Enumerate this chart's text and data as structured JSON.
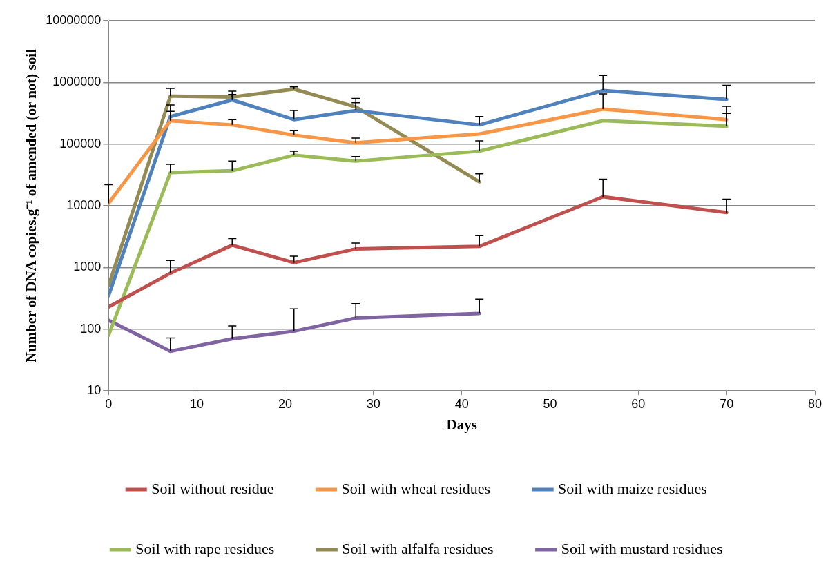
{
  "chart_data": {
    "type": "line",
    "xlabel": "Days",
    "ylabel": "Number of DNA copies.g⁻¹ of amended (or not) soil",
    "x": [
      0,
      7,
      14,
      21,
      28,
      42,
      56,
      70
    ],
    "xlim": [
      0,
      80
    ],
    "xticks": [
      0,
      10,
      20,
      30,
      40,
      50,
      60,
      70,
      80
    ],
    "ylim": [
      10,
      10000000
    ],
    "yticks": [
      10,
      100,
      1000,
      10000,
      100000,
      1000000,
      10000000
    ],
    "log": true,
    "grid": "y",
    "legend": "bottom",
    "marker": "none",
    "line_style": "solid",
    "series": [
      {
        "name": "Soil without residue",
        "color": "#c0504d",
        "values": [
          230,
          810,
          2300,
          1200,
          2000,
          2200,
          14000,
          7800
        ],
        "errors": [
          null,
          [
            810,
            1300
          ],
          [
            2300,
            2950
          ],
          [
            1200,
            1530
          ],
          [
            2000,
            2500
          ],
          [
            2200,
            3300
          ],
          [
            14000,
            27000
          ],
          [
            7800,
            12800
          ]
        ]
      },
      {
        "name": "Soil with wheat residues",
        "color": "#f79646",
        "values": [
          11000,
          240000,
          205000,
          140000,
          105000,
          146000,
          370000,
          250000
        ],
        "errors": [
          [
            11000,
            22000
          ],
          [
            240000,
            340000
          ],
          [
            205000,
            250000
          ],
          [
            140000,
            165000
          ],
          [
            105000,
            125000
          ],
          null,
          [
            370000,
            650000
          ],
          [
            250000,
            410000
          ]
        ]
      },
      {
        "name": "Soil with maize residues",
        "color": "#4f81bd",
        "values": [
          350,
          280000,
          520000,
          250000,
          350000,
          205000,
          740000,
          530000
        ],
        "errors": [
          null,
          [
            280000,
            430000
          ],
          [
            520000,
            640000
          ],
          [
            250000,
            350000
          ],
          [
            350000,
            470000
          ],
          [
            205000,
            280000
          ],
          [
            740000,
            1300000
          ],
          [
            530000,
            900000
          ]
        ]
      },
      {
        "name": "Soil with rape residues",
        "color": "#9bbb59",
        "values": [
          80,
          34500,
          37000,
          66000,
          53000,
          77000,
          240000,
          195000
        ],
        "errors": [
          null,
          [
            34500,
            47000
          ],
          [
            37000,
            53000
          ],
          [
            66000,
            77000
          ],
          [
            53000,
            63000
          ],
          [
            77000,
            113000
          ],
          null,
          [
            195000,
            315000
          ]
        ]
      },
      {
        "name": "Soil with alfalfa residues",
        "color": "#948a54",
        "values": [
          510,
          600000,
          580000,
          780000,
          400000,
          24500,
          null,
          null
        ],
        "errors": [
          null,
          [
            600000,
            800000
          ],
          [
            580000,
            720000
          ],
          [
            780000,
            850000
          ],
          [
            400000,
            550000
          ],
          [
            24500,
            33000
          ],
          null,
          null
        ]
      },
      {
        "name": "Soil with mustard residues",
        "color": "#8064a2",
        "values": [
          140,
          44,
          70,
          93,
          152,
          180,
          null,
          null
        ],
        "errors": [
          null,
          [
            44,
            72
          ],
          [
            70,
            113
          ],
          [
            93,
            214
          ],
          [
            152,
            260
          ],
          [
            180,
            307
          ],
          null,
          null
        ]
      }
    ]
  }
}
